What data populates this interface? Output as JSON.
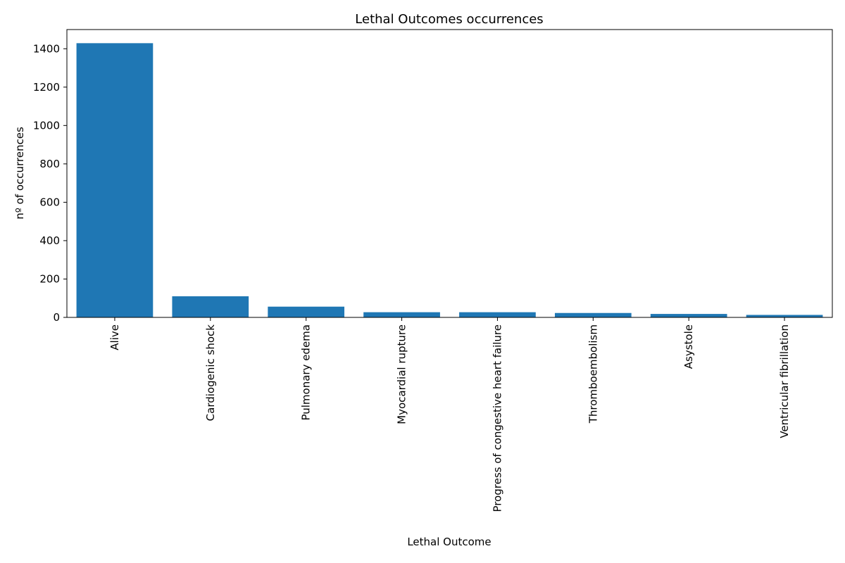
{
  "chart_data": {
    "type": "bar",
    "title": "Lethal Outcomes occurrences",
    "xlabel": "Lethal Outcome",
    "ylabel": "nº of occurrences",
    "categories": [
      "Alive",
      "Cardiogenic shock",
      "Pulmonary edema",
      "Myocardial rupture",
      "Progress of congestive heart failure",
      "Thromboembolism",
      "Asystole",
      "Ventricular fibrillation"
    ],
    "values": [
      1429,
      110,
      56,
      27,
      27,
      23,
      18,
      13
    ],
    "yticks": [
      0,
      200,
      400,
      600,
      800,
      1000,
      1200,
      1400
    ],
    "ylim": [
      0,
      1500
    ],
    "bar_color": "#1f77b4",
    "grid": false,
    "legend": false
  }
}
